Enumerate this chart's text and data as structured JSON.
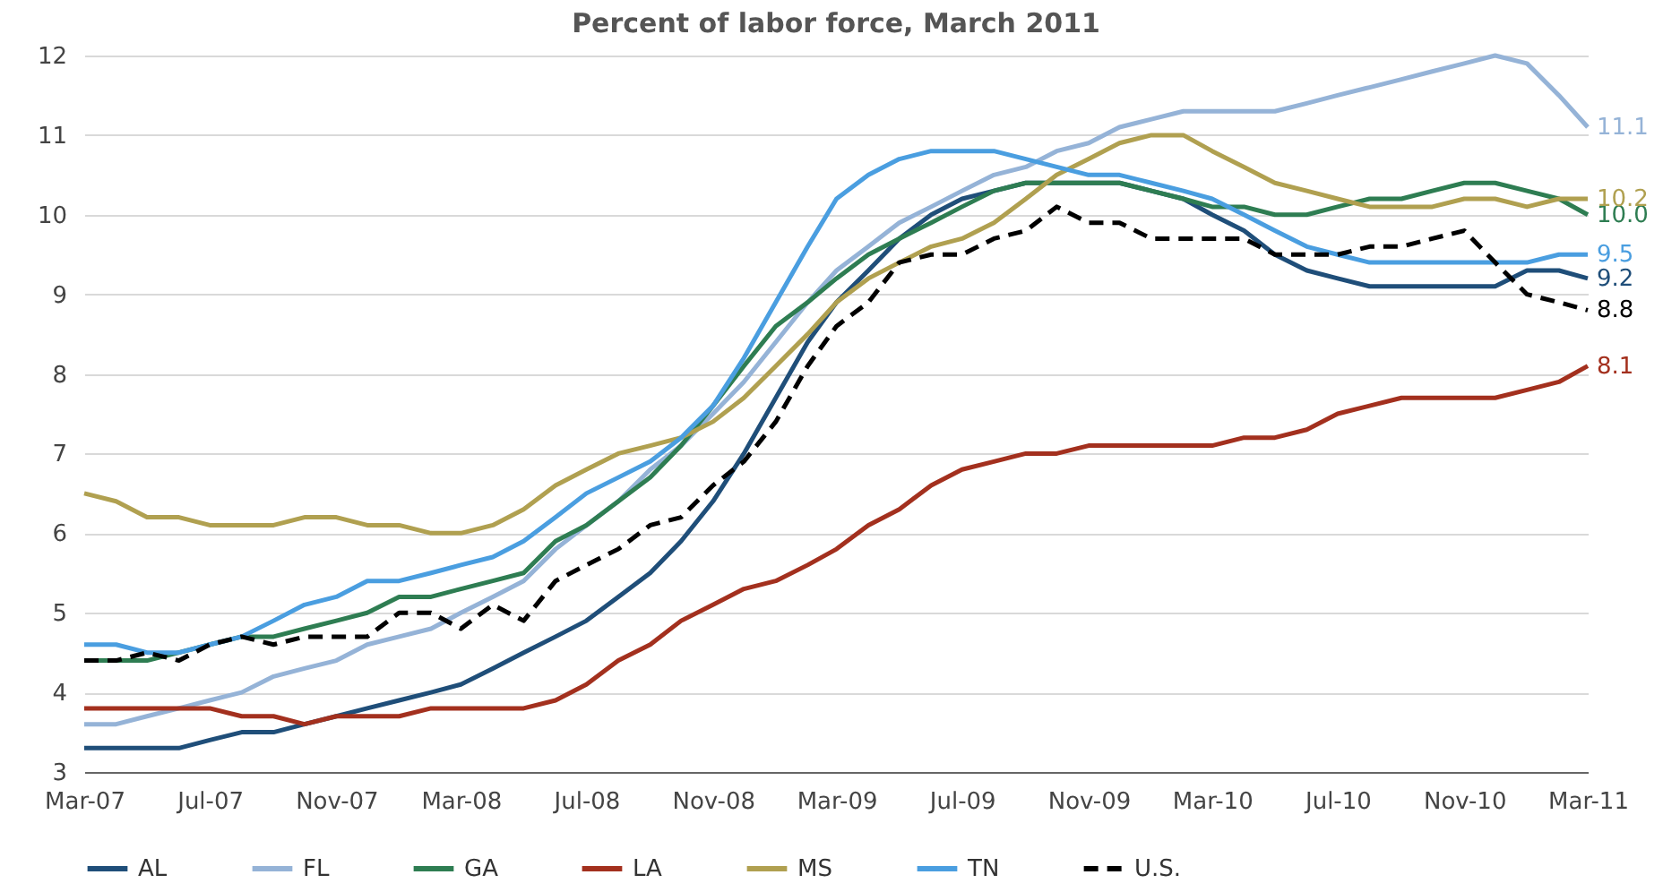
{
  "chart_data": {
    "type": "line",
    "title": "Percent of labor force, March 2011",
    "x": [
      "2007-03",
      "2007-04",
      "2007-05",
      "2007-06",
      "2007-07",
      "2007-08",
      "2007-09",
      "2007-10",
      "2007-11",
      "2007-12",
      "2008-01",
      "2008-02",
      "2008-03",
      "2008-04",
      "2008-05",
      "2008-06",
      "2008-07",
      "2008-08",
      "2008-09",
      "2008-10",
      "2008-11",
      "2008-12",
      "2009-01",
      "2009-02",
      "2009-03",
      "2009-04",
      "2009-05",
      "2009-06",
      "2009-07",
      "2009-08",
      "2009-09",
      "2009-10",
      "2009-11",
      "2009-12",
      "2010-01",
      "2010-02",
      "2010-03",
      "2010-04",
      "2010-05",
      "2010-06",
      "2010-07",
      "2010-08",
      "2010-09",
      "2010-10",
      "2010-11",
      "2010-12",
      "2011-01",
      "2011-02",
      "2011-03"
    ],
    "series": [
      {
        "name": "AL",
        "color": "#1f4e79",
        "line_style": "solid",
        "values": [
          3.3,
          3.3,
          3.3,
          3.3,
          3.4,
          3.5,
          3.5,
          3.6,
          3.7,
          3.8,
          3.9,
          4.0,
          4.1,
          4.3,
          4.5,
          4.7,
          4.9,
          5.2,
          5.5,
          5.9,
          6.4,
          7.0,
          7.7,
          8.4,
          8.9,
          9.3,
          9.7,
          10.0,
          10.2,
          10.3,
          10.4,
          10.4,
          10.4,
          10.4,
          10.3,
          10.2,
          10.0,
          9.8,
          9.5,
          9.3,
          9.2,
          9.1,
          9.1,
          9.1,
          9.1,
          9.1,
          9.3,
          9.3,
          9.2
        ],
        "value_labels": [
          null,
          null,
          null,
          null,
          null,
          null,
          null,
          null,
          null,
          null,
          null,
          null,
          null,
          null,
          null,
          null,
          null,
          null,
          null,
          null,
          null,
          null,
          null,
          null,
          null,
          null,
          null,
          null,
          null,
          null,
          null,
          null,
          null,
          null,
          null,
          null,
          null,
          null,
          null,
          null,
          null,
          null,
          null,
          null,
          null,
          null,
          null,
          null,
          "9.2"
        ]
      },
      {
        "name": "FL",
        "color": "#95b3d7",
        "line_style": "solid",
        "values": [
          3.6,
          3.6,
          3.7,
          3.8,
          3.9,
          4.0,
          4.2,
          4.3,
          4.4,
          4.6,
          4.7,
          4.8,
          5.0,
          5.2,
          5.4,
          5.8,
          6.1,
          6.4,
          6.8,
          7.1,
          7.5,
          7.9,
          8.4,
          8.9,
          9.3,
          9.6,
          9.9,
          10.1,
          10.3,
          10.5,
          10.6,
          10.8,
          10.9,
          11.1,
          11.2,
          11.3,
          11.3,
          11.3,
          11.3,
          11.4,
          11.5,
          11.6,
          11.7,
          11.8,
          11.9,
          12.0,
          11.9,
          11.5,
          11.1
        ],
        "value_labels": [
          null,
          null,
          null,
          null,
          null,
          null,
          null,
          null,
          null,
          null,
          null,
          null,
          null,
          null,
          null,
          null,
          null,
          null,
          null,
          null,
          null,
          null,
          null,
          null,
          null,
          null,
          null,
          null,
          null,
          null,
          null,
          null,
          null,
          null,
          null,
          null,
          null,
          null,
          null,
          null,
          null,
          null,
          null,
          null,
          null,
          null,
          null,
          null,
          "11.1"
        ]
      },
      {
        "name": "GA",
        "color": "#2e7d52",
        "line_style": "solid",
        "values": [
          4.4,
          4.4,
          4.4,
          4.5,
          4.6,
          4.7,
          4.7,
          4.8,
          4.9,
          5.0,
          5.2,
          5.2,
          5.3,
          5.4,
          5.5,
          5.9,
          6.1,
          6.4,
          6.7,
          7.1,
          7.6,
          8.1,
          8.6,
          8.9,
          9.2,
          9.5,
          9.7,
          9.9,
          10.1,
          10.3,
          10.4,
          10.4,
          10.4,
          10.4,
          10.3,
          10.2,
          10.1,
          10.1,
          10.0,
          10.0,
          10.1,
          10.2,
          10.2,
          10.3,
          10.4,
          10.4,
          10.3,
          10.2,
          10.0
        ],
        "value_labels": [
          null,
          null,
          null,
          null,
          null,
          null,
          null,
          null,
          null,
          null,
          null,
          null,
          null,
          null,
          null,
          null,
          null,
          null,
          null,
          null,
          null,
          null,
          null,
          null,
          null,
          null,
          null,
          null,
          null,
          null,
          null,
          null,
          null,
          null,
          null,
          null,
          null,
          null,
          null,
          null,
          null,
          null,
          null,
          null,
          null,
          null,
          null,
          null,
          "10.0"
        ]
      },
      {
        "name": "LA",
        "color": "#a3301e",
        "line_style": "solid",
        "values": [
          3.8,
          3.8,
          3.8,
          3.8,
          3.8,
          3.7,
          3.7,
          3.6,
          3.7,
          3.7,
          3.7,
          3.8,
          3.8,
          3.8,
          3.8,
          3.9,
          4.1,
          4.4,
          4.6,
          4.9,
          5.1,
          5.3,
          5.4,
          5.6,
          5.8,
          6.1,
          6.3,
          6.6,
          6.8,
          6.9,
          7.0,
          7.0,
          7.1,
          7.1,
          7.1,
          7.1,
          7.1,
          7.2,
          7.2,
          7.3,
          7.5,
          7.6,
          7.7,
          7.7,
          7.7,
          7.7,
          7.8,
          7.9,
          8.1
        ],
        "value_labels": [
          null,
          null,
          null,
          null,
          null,
          null,
          null,
          null,
          null,
          null,
          null,
          null,
          null,
          null,
          null,
          null,
          null,
          null,
          null,
          null,
          null,
          null,
          null,
          null,
          null,
          null,
          null,
          null,
          null,
          null,
          null,
          null,
          null,
          null,
          null,
          null,
          null,
          null,
          null,
          null,
          null,
          null,
          null,
          null,
          null,
          null,
          null,
          null,
          "8.1"
        ]
      },
      {
        "name": "MS",
        "color": "#b0a050",
        "line_style": "solid",
        "values": [
          6.5,
          6.4,
          6.2,
          6.2,
          6.1,
          6.1,
          6.1,
          6.2,
          6.2,
          6.1,
          6.1,
          6.0,
          6.0,
          6.1,
          6.3,
          6.6,
          6.8,
          7.0,
          7.1,
          7.2,
          7.4,
          7.7,
          8.1,
          8.5,
          8.9,
          9.2,
          9.4,
          9.6,
          9.7,
          9.9,
          10.2,
          10.5,
          10.7,
          10.9,
          11.0,
          11.0,
          10.8,
          10.6,
          10.4,
          10.3,
          10.2,
          10.1,
          10.1,
          10.1,
          10.2,
          10.2,
          10.1,
          10.2,
          10.2
        ],
        "value_labels": [
          null,
          null,
          null,
          null,
          null,
          null,
          null,
          null,
          null,
          null,
          null,
          null,
          null,
          null,
          null,
          null,
          null,
          null,
          null,
          null,
          null,
          null,
          null,
          null,
          null,
          null,
          null,
          null,
          null,
          null,
          null,
          null,
          null,
          null,
          null,
          null,
          null,
          null,
          null,
          null,
          null,
          null,
          null,
          null,
          null,
          null,
          null,
          null,
          "10.2"
        ]
      },
      {
        "name": "TN",
        "color": "#4a9ee0",
        "line_style": "solid",
        "values": [
          4.6,
          4.6,
          4.5,
          4.5,
          4.6,
          4.7,
          4.9,
          5.1,
          5.2,
          5.4,
          5.4,
          5.5,
          5.6,
          5.7,
          5.9,
          6.2,
          6.5,
          6.7,
          6.9,
          7.2,
          7.6,
          8.2,
          8.9,
          9.6,
          10.2,
          10.5,
          10.7,
          10.8,
          10.8,
          10.8,
          10.7,
          10.6,
          10.5,
          10.5,
          10.4,
          10.3,
          10.2,
          10.0,
          9.8,
          9.6,
          9.5,
          9.4,
          9.4,
          9.4,
          9.4,
          9.4,
          9.4,
          9.5,
          9.5
        ],
        "value_labels": [
          null,
          null,
          null,
          null,
          null,
          null,
          null,
          null,
          null,
          null,
          null,
          null,
          null,
          null,
          null,
          null,
          null,
          null,
          null,
          null,
          null,
          null,
          null,
          null,
          null,
          null,
          null,
          null,
          null,
          null,
          null,
          null,
          null,
          null,
          null,
          null,
          null,
          null,
          null,
          null,
          null,
          null,
          null,
          null,
          null,
          null,
          null,
          null,
          "9.5"
        ]
      },
      {
        "name": "U.S.",
        "color": "#000000",
        "line_style": "dashed",
        "values": [
          4.4,
          4.4,
          4.5,
          4.4,
          4.6,
          4.7,
          4.6,
          4.7,
          4.7,
          4.7,
          5.0,
          5.0,
          4.8,
          5.1,
          4.9,
          5.4,
          5.6,
          5.8,
          6.1,
          6.2,
          6.6,
          6.9,
          7.4,
          8.1,
          8.6,
          8.9,
          9.4,
          9.5,
          9.5,
          9.7,
          9.8,
          10.1,
          9.9,
          9.9,
          9.7,
          9.7,
          9.7,
          9.7,
          9.5,
          9.5,
          9.5,
          9.6,
          9.6,
          9.7,
          9.8,
          9.4,
          9.0,
          8.9,
          8.8
        ],
        "value_labels": [
          null,
          null,
          null,
          null,
          null,
          null,
          null,
          null,
          null,
          null,
          null,
          null,
          null,
          null,
          null,
          null,
          null,
          null,
          null,
          null,
          null,
          null,
          null,
          null,
          null,
          null,
          null,
          null,
          null,
          null,
          null,
          null,
          null,
          null,
          null,
          null,
          null,
          null,
          null,
          null,
          null,
          null,
          null,
          null,
          null,
          null,
          null,
          null,
          "8.8"
        ]
      }
    ],
    "xlim": [
      "2007-03",
      "2011-03"
    ],
    "xticks": [
      {
        "value": "2007-03",
        "label": "Mar-07"
      },
      {
        "value": "2007-07",
        "label": "Jul-07"
      },
      {
        "value": "2007-11",
        "label": "Nov-07"
      },
      {
        "value": "2008-03",
        "label": "Mar-08"
      },
      {
        "value": "2008-07",
        "label": "Jul-08"
      },
      {
        "value": "2008-11",
        "label": "Nov-08"
      },
      {
        "value": "2009-03",
        "label": "Mar-09"
      },
      {
        "value": "2009-07",
        "label": "Jul-09"
      },
      {
        "value": "2009-11",
        "label": "Nov-09"
      },
      {
        "value": "2010-03",
        "label": "Mar-10"
      },
      {
        "value": "2010-07",
        "label": "Jul-10"
      },
      {
        "value": "2010-11",
        "label": "Nov-10"
      },
      {
        "value": "2011-03",
        "label": "Mar-11"
      }
    ],
    "ylim": [
      3,
      12
    ],
    "yticks": [
      3,
      4,
      5,
      6,
      7,
      8,
      9,
      10,
      11,
      12
    ],
    "grid": "y",
    "legend": "bottom",
    "marker": "none"
  }
}
